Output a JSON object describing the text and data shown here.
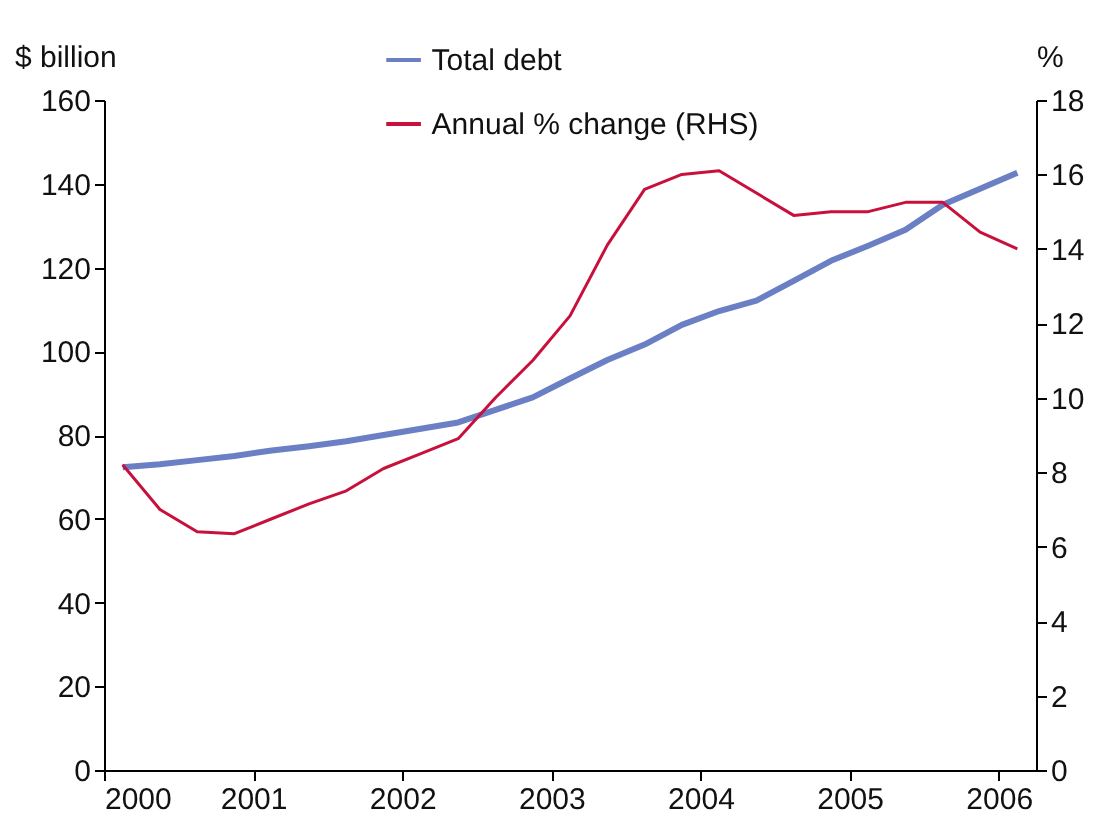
{
  "chart_data": {
    "type": "line",
    "ylabel": "$ billion",
    "y2label": "%",
    "x": [
      2000.125,
      2000.375,
      2000.625,
      2000.875,
      2001.125,
      2001.375,
      2001.625,
      2001.875,
      2002.125,
      2002.375,
      2002.625,
      2002.875,
      2003.125,
      2003.375,
      2003.625,
      2003.875,
      2004.125,
      2004.375,
      2004.625,
      2004.875,
      2005.125,
      2005.375,
      2005.625,
      2005.875,
      2006.125
    ],
    "series": [
      {
        "name": "Total debt",
        "color": "#6b7fc4",
        "values": [
          72.3,
          73,
          74,
          75,
          76.3,
          77.3,
          78.5,
          80,
          81.5,
          83,
          86,
          89,
          93.5,
          97.9,
          101.6,
          106.3,
          109.6,
          112.1,
          116.8,
          121.6,
          125.2,
          129,
          135,
          138.8,
          142.6
        ]
      },
      {
        "name": "Annual % change (RHS)",
        "color": "#c8103c",
        "axis": "y2",
        "values": [
          8.2,
          7.0,
          6.4,
          6.35,
          6.75,
          7.15,
          7.5,
          8.1,
          8.5,
          8.9,
          10.0,
          11.0,
          12.2,
          14.1,
          15.6,
          16.0,
          16.1,
          15.5,
          14.9,
          15.0,
          15.0,
          15.25,
          15.25,
          14.45,
          14.0
        ]
      }
    ],
    "xlim": [
      2000,
      2006.25
    ],
    "xticks": [
      2000,
      2001,
      2002,
      2003,
      2004,
      2005,
      2006
    ],
    "ylim": [
      0,
      160
    ],
    "yticks": [
      0,
      20,
      40,
      60,
      80,
      100,
      120,
      140,
      160
    ],
    "y2lim": [
      0,
      18
    ],
    "y2ticks": [
      0,
      2,
      4,
      6,
      8,
      10,
      12,
      14,
      16,
      18
    ],
    "grid": false,
    "legend": "top",
    "marker": "none",
    "line_style": "solid"
  }
}
